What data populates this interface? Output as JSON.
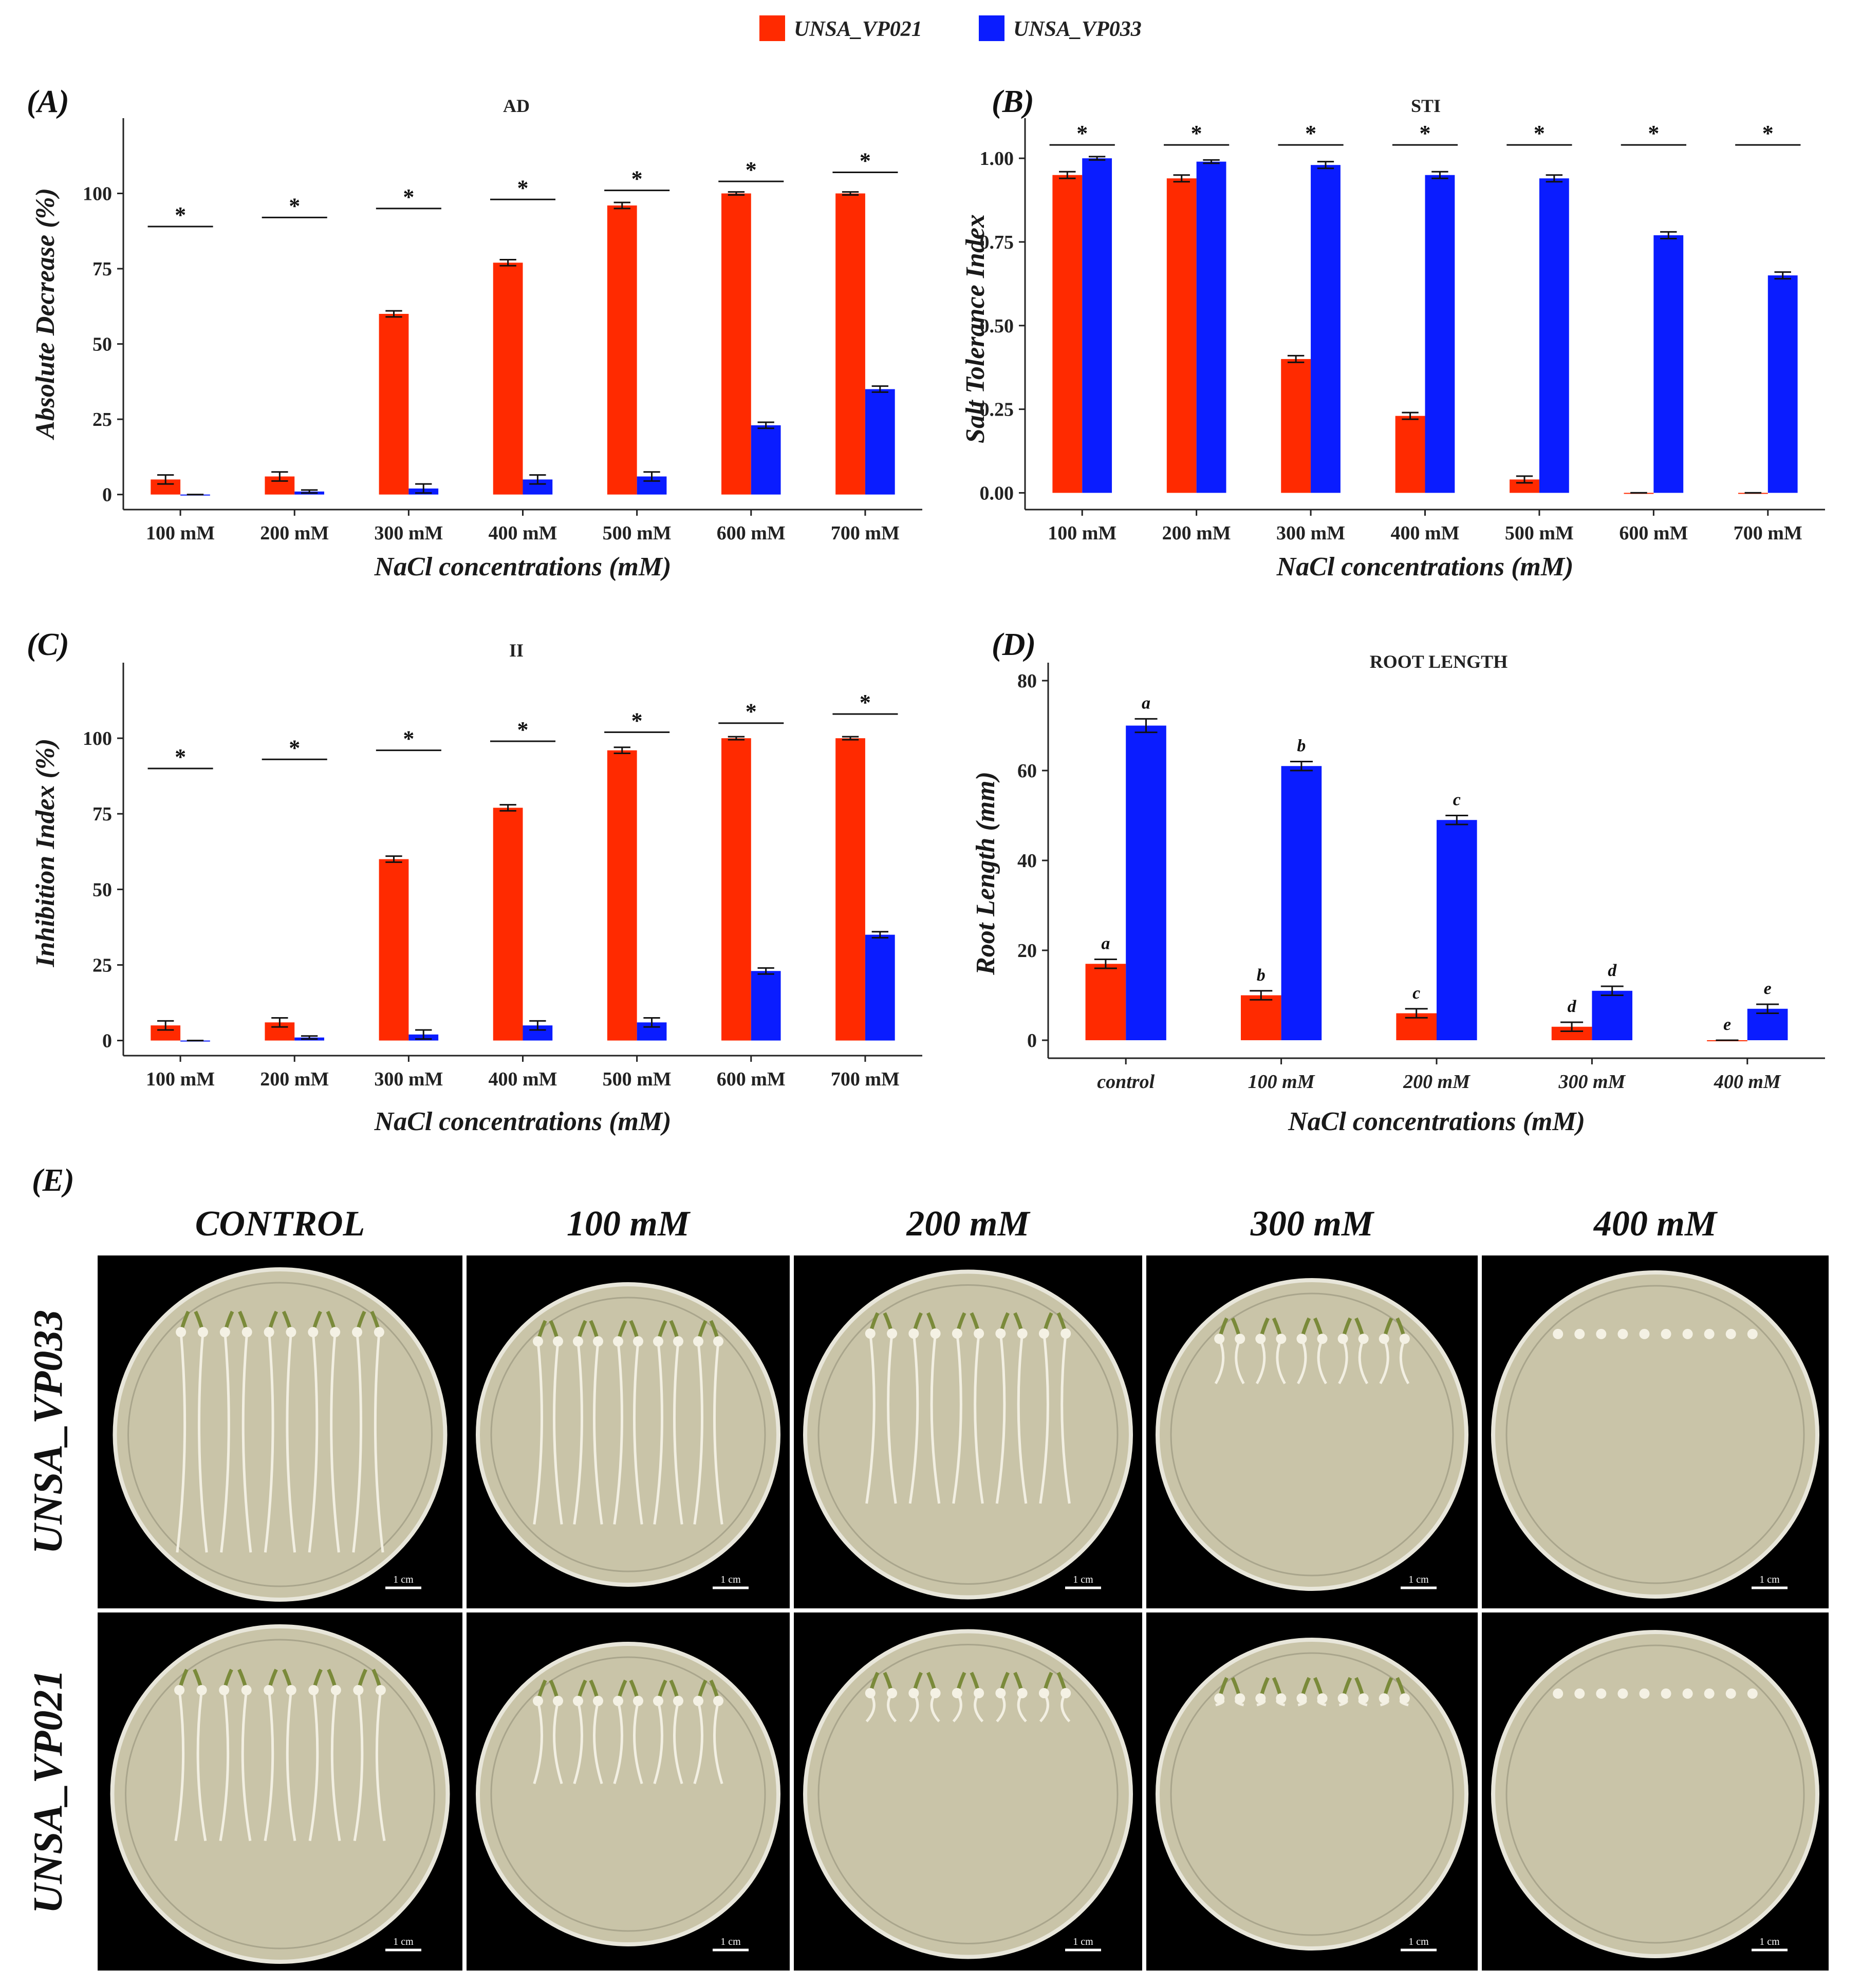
{
  "legend": [
    {
      "label": "UNSA_VP021",
      "color": "#ff2a00"
    },
    {
      "label": "UNSA_VP033",
      "color": "#0a1cff"
    }
  ],
  "colors": {
    "series1": "#ff2a00",
    "series2": "#0a1cff",
    "photo_bg": "#000000",
    "dish": "#c9c4a8"
  },
  "chart_data": [
    {
      "panel": "(A)",
      "type": "bar",
      "title": "AD",
      "xlabel": "NaCl concentrations (mM)",
      "ylabel": "Absolute Decrease (%)",
      "categories": [
        "100 mM",
        "200 mM",
        "300 mM",
        "400 mM",
        "500 mM",
        "600 mM",
        "700 mM"
      ],
      "ylim": [
        -5,
        125
      ],
      "yticks": [
        0,
        25,
        50,
        75,
        100
      ],
      "grid": false,
      "series": [
        {
          "name": "UNSA_VP021",
          "values": [
            5,
            6,
            60,
            77,
            96,
            100,
            100
          ],
          "errors": [
            1.5,
            1.5,
            1,
            1,
            1,
            0.5,
            0.5
          ]
        },
        {
          "name": "UNSA_VP033",
          "values": [
            0,
            1,
            2,
            5,
            6,
            23,
            35
          ],
          "errors": [
            0,
            0.5,
            1.5,
            1.5,
            1.5,
            1,
            1
          ]
        }
      ],
      "annotations": [
        "*",
        "*",
        "*",
        "*",
        "*",
        "*",
        "*"
      ],
      "sig_heights": [
        89,
        92,
        95,
        98,
        101,
        104,
        107
      ]
    },
    {
      "panel": "(B)",
      "type": "bar",
      "title": "STI",
      "xlabel": "NaCl concentrations (mM)",
      "ylabel": "Salt Tolerance Index",
      "categories": [
        "100 mM",
        "200 mM",
        "300 mM",
        "400 mM",
        "500 mM",
        "600 mM",
        "700 mM"
      ],
      "ylim": [
        -0.05,
        1.12
      ],
      "yticks": [
        "0.00",
        "0.25",
        "0.50",
        "0.75",
        "1.00"
      ],
      "grid": false,
      "series": [
        {
          "name": "UNSA_VP021",
          "values": [
            0.95,
            0.94,
            0.4,
            0.23,
            0.04,
            0,
            0
          ],
          "errors": [
            0.01,
            0.01,
            0.01,
            0.01,
            0.01,
            0,
            0
          ]
        },
        {
          "name": "UNSA_VP033",
          "values": [
            1.0,
            0.99,
            0.98,
            0.95,
            0.94,
            0.77,
            0.65
          ],
          "errors": [
            0.005,
            0.005,
            0.01,
            0.01,
            0.01,
            0.01,
            0.01
          ]
        }
      ],
      "annotations": [
        "*",
        "*",
        "*",
        "*",
        "*",
        "*",
        "*"
      ],
      "sig_heights": [
        1.04,
        1.04,
        1.04,
        1.04,
        1.04,
        1.04,
        1.04
      ]
    },
    {
      "panel": "(C)",
      "type": "bar",
      "title": "II",
      "xlabel": "NaCl concentrations (mM)",
      "ylabel": "Inhibition Index (%)",
      "categories": [
        "100 mM",
        "200 mM",
        "300 mM",
        "400 mM",
        "500 mM",
        "600 mM",
        "700 mM"
      ],
      "ylim": [
        -5,
        125
      ],
      "yticks": [
        0,
        25,
        50,
        75,
        100
      ],
      "grid": false,
      "series": [
        {
          "name": "UNSA_VP021",
          "values": [
            5,
            6,
            60,
            77,
            96,
            100,
            100
          ],
          "errors": [
            1.5,
            1.5,
            1,
            1,
            1,
            0.5,
            0.5
          ]
        },
        {
          "name": "UNSA_VP033",
          "values": [
            0,
            1,
            2,
            5,
            6,
            23,
            35
          ],
          "errors": [
            0,
            0.5,
            1.5,
            1.5,
            1.5,
            1,
            1
          ]
        }
      ],
      "annotations": [
        "*",
        "*",
        "*",
        "*",
        "*",
        "*",
        "*"
      ],
      "sig_heights": [
        90,
        93,
        96,
        99,
        102,
        105,
        108
      ]
    },
    {
      "panel": "(D)",
      "type": "bar",
      "title": "ROOT LENGTH",
      "xlabel": "NaCl concentrations (mM)",
      "ylabel": "Root Length (mm)",
      "categories": [
        "control",
        "100 mM",
        "200 mM",
        "300 mM",
        "400 mM"
      ],
      "ylim": [
        -4,
        84
      ],
      "yticks": [
        0,
        20,
        40,
        60,
        80
      ],
      "grid": false,
      "series": [
        {
          "name": "UNSA_VP021",
          "values": [
            17,
            10,
            6,
            3,
            0
          ],
          "errors": [
            1,
            1,
            1,
            1,
            0
          ],
          "letters": [
            "a",
            "b",
            "c",
            "d",
            "e"
          ]
        },
        {
          "name": "UNSA_VP033",
          "values": [
            70,
            61,
            49,
            11,
            7
          ],
          "errors": [
            1.5,
            1,
            1,
            1,
            1
          ],
          "letters": [
            "a",
            "b",
            "c",
            "d",
            "e"
          ]
        }
      ]
    }
  ],
  "photo_panel": {
    "label": "(E)",
    "columns": [
      "CONTROL",
      "100 mM",
      "200 mM",
      "300 mM",
      "400 mM"
    ],
    "rows": [
      "UNSA_VP033",
      "UNSA_VP021"
    ],
    "scale_bar_label": "1 cm",
    "root_fraction": [
      [
        0.92,
        0.84,
        0.72,
        0.2,
        0.0
      ],
      [
        0.62,
        0.38,
        0.12,
        0.03,
        0.0
      ]
    ],
    "seedlings_per_dish": 10
  }
}
